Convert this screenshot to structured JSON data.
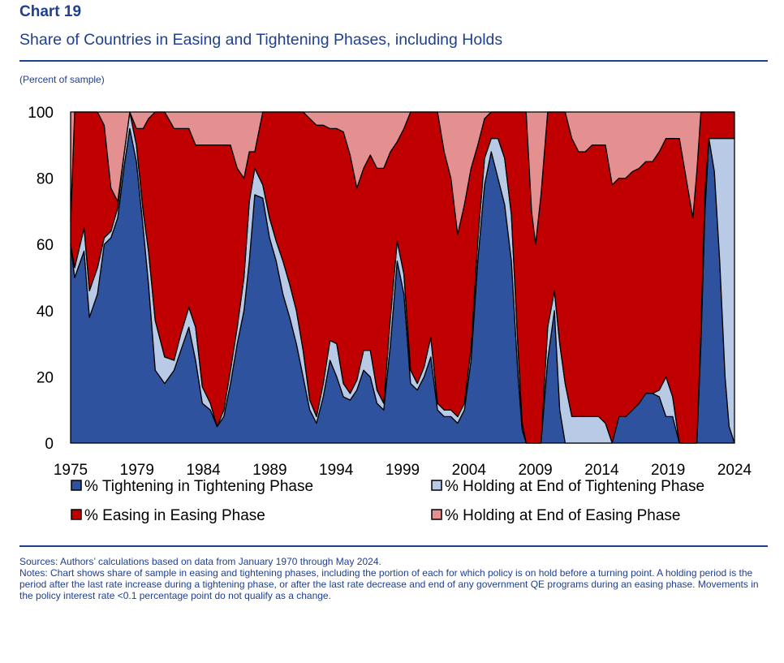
{
  "header": {
    "chart_number": "Chart 19",
    "title": "Share of Countries in Easing and Tightening Phases, including Holds",
    "unit_label": "(Percent of sample)"
  },
  "footer": {
    "sources": "Sources: Authors’ calculations based on data from January 1970 through May 2024.",
    "notes": "Notes: Chart shows share of sample in easing and tightening phases, including the portion of each for which policy is on hold before a turning point. A holding period is the period after the last rate increase during a tightening phase, or after the last rate decrease and end of any government QE programs during an easing phase. Movements in the policy interest rate <0.1 percentage point do not qualify as a change."
  },
  "colors": {
    "tightening": "#2e529e",
    "holding_tightening": "#b8cae6",
    "easing": "#c00000",
    "holding_easing": "#e59090",
    "outline": "#000000",
    "text": "#1f3f8f"
  },
  "chart_data": {
    "type": "area",
    "stacked": true,
    "x_range": [
      1975.0,
      2024.4
    ],
    "ylim": [
      0,
      100
    ],
    "yticks": [
      0,
      20,
      40,
      60,
      80,
      100
    ],
    "xticks": [
      "1975",
      "1979",
      "1984",
      "1989",
      "1994",
      "1999",
      "2004",
      "2009",
      "2014",
      "2019",
      "2024"
    ],
    "legend_placement": "bottom",
    "grid": false,
    "series": [
      {
        "name": "% Tightening in Tightening Phase",
        "color_key": "tightening"
      },
      {
        "name": "% Holding at End of Tightening Phase",
        "color_key": "holding_tightening"
      },
      {
        "name": "% Easing in Easing Phase",
        "color_key": "easing"
      },
      {
        "name": "% Holding at End of Easing Phase",
        "color_key": "holding_easing"
      }
    ],
    "points": [
      [
        1975.0,
        60,
        0,
        7,
        33
      ],
      [
        1975.3,
        50,
        3,
        47,
        0
      ],
      [
        1976.0,
        58,
        7,
        35,
        0
      ],
      [
        1976.4,
        38,
        8,
        54,
        0
      ],
      [
        1977.0,
        45,
        8,
        47,
        0
      ],
      [
        1977.5,
        60,
        2,
        34,
        4
      ],
      [
        1978.0,
        62,
        2,
        13,
        23
      ],
      [
        1978.5,
        68,
        3,
        2,
        27
      ],
      [
        1979.0,
        84,
        4,
        0,
        12
      ],
      [
        1979.4,
        95,
        5,
        0,
        0
      ],
      [
        1979.9,
        85,
        5,
        5,
        5
      ],
      [
        1980.4,
        65,
        5,
        25,
        5
      ],
      [
        1980.8,
        48,
        10,
        40,
        2
      ],
      [
        1981.3,
        22,
        15,
        63,
        0
      ],
      [
        1982.0,
        18,
        8,
        74,
        0
      ],
      [
        1982.7,
        22,
        3,
        70,
        5
      ],
      [
        1983.2,
        28,
        5,
        62,
        5
      ],
      [
        1983.8,
        35,
        6,
        54,
        5
      ],
      [
        1984.3,
        25,
        10,
        55,
        10
      ],
      [
        1984.8,
        12,
        5,
        73,
        10
      ],
      [
        1985.4,
        10,
        2,
        78,
        10
      ],
      [
        1985.9,
        5,
        0,
        85,
        10
      ],
      [
        1986.4,
        8,
        2,
        80,
        10
      ],
      [
        1986.9,
        18,
        4,
        68,
        10
      ],
      [
        1987.4,
        30,
        5,
        48,
        17
      ],
      [
        1987.9,
        40,
        10,
        30,
        20
      ],
      [
        1988.3,
        55,
        18,
        15,
        12
      ],
      [
        1988.7,
        75,
        8,
        5,
        12
      ],
      [
        1989.3,
        74,
        4,
        22,
        0
      ],
      [
        1989.8,
        62,
        6,
        32,
        0
      ],
      [
        1990.3,
        55,
        6,
        39,
        0
      ],
      [
        1990.8,
        45,
        10,
        45,
        0
      ],
      [
        1991.3,
        38,
        10,
        52,
        0
      ],
      [
        1991.8,
        30,
        10,
        60,
        0
      ],
      [
        1992.3,
        20,
        8,
        72,
        0
      ],
      [
        1992.8,
        10,
        3,
        85,
        2
      ],
      [
        1993.3,
        6,
        2,
        88,
        4
      ],
      [
        1993.8,
        14,
        4,
        78,
        4
      ],
      [
        1994.3,
        25,
        6,
        64,
        5
      ],
      [
        1994.8,
        20,
        10,
        65,
        5
      ],
      [
        1995.3,
        14,
        4,
        76,
        6
      ],
      [
        1995.8,
        13,
        2,
        72,
        13
      ],
      [
        1996.3,
        16,
        3,
        58,
        23
      ],
      [
        1996.8,
        22,
        6,
        55,
        17
      ],
      [
        1997.3,
        20,
        8,
        59,
        13
      ],
      [
        1997.8,
        12,
        4,
        67,
        17
      ],
      [
        1998.3,
        10,
        2,
        71,
        17
      ],
      [
        1998.8,
        30,
        8,
        50,
        12
      ],
      [
        1999.3,
        55,
        6,
        30,
        9
      ],
      [
        1999.8,
        45,
        6,
        44,
        5
      ],
      [
        2000.3,
        18,
        4,
        78,
        0
      ],
      [
        2000.8,
        16,
        2,
        82,
        0
      ],
      [
        2001.3,
        20,
        3,
        77,
        0
      ],
      [
        2001.8,
        26,
        6,
        68,
        0
      ],
      [
        2002.3,
        10,
        2,
        88,
        0
      ],
      [
        2002.8,
        8,
        2,
        78,
        12
      ],
      [
        2003.3,
        8,
        2,
        70,
        20
      ],
      [
        2003.8,
        6,
        2,
        55,
        37
      ],
      [
        2004.3,
        10,
        2,
        60,
        28
      ],
      [
        2004.8,
        25,
        4,
        54,
        17
      ],
      [
        2005.3,
        55,
        6,
        29,
        10
      ],
      [
        2005.8,
        78,
        8,
        12,
        2
      ],
      [
        2006.3,
        88,
        4,
        8,
        0
      ],
      [
        2006.8,
        80,
        12,
        8,
        0
      ],
      [
        2007.3,
        72,
        14,
        14,
        0
      ],
      [
        2007.8,
        55,
        14,
        31,
        0
      ],
      [
        2008.3,
        20,
        8,
        72,
        0
      ],
      [
        2008.6,
        4,
        2,
        94,
        0
      ],
      [
        2008.9,
        0,
        0,
        100,
        0
      ],
      [
        2009.3,
        0,
        0,
        70,
        30
      ],
      [
        2009.6,
        0,
        0,
        60,
        40
      ],
      [
        2010.0,
        0,
        0,
        75,
        25
      ],
      [
        2010.5,
        25,
        10,
        65,
        0
      ],
      [
        2011.0,
        40,
        6,
        54,
        0
      ],
      [
        2011.4,
        10,
        20,
        70,
        0
      ],
      [
        2011.8,
        0,
        18,
        82,
        0
      ],
      [
        2012.3,
        0,
        8,
        84,
        8
      ],
      [
        2012.8,
        0,
        8,
        80,
        12
      ],
      [
        2013.3,
        0,
        8,
        80,
        12
      ],
      [
        2013.8,
        0,
        8,
        82,
        10
      ],
      [
        2014.3,
        0,
        8,
        82,
        10
      ],
      [
        2014.8,
        0,
        6,
        84,
        10
      ],
      [
        2015.3,
        0,
        0,
        78,
        22
      ],
      [
        2015.8,
        8,
        0,
        72,
        20
      ],
      [
        2016.3,
        8,
        0,
        72,
        20
      ],
      [
        2016.8,
        10,
        0,
        72,
        18
      ],
      [
        2017.3,
        12,
        0,
        71,
        17
      ],
      [
        2017.8,
        15,
        0,
        70,
        15
      ],
      [
        2018.3,
        15,
        0,
        70,
        15
      ],
      [
        2018.8,
        14,
        2,
        72,
        12
      ],
      [
        2019.3,
        8,
        12,
        72,
        8
      ],
      [
        2019.8,
        8,
        6,
        78,
        8
      ],
      [
        2020.3,
        0,
        0,
        92,
        8
      ],
      [
        2020.8,
        0,
        0,
        80,
        20
      ],
      [
        2021.3,
        0,
        0,
        68,
        32
      ],
      [
        2021.6,
        0,
        0,
        82,
        18
      ],
      [
        2021.9,
        30,
        4,
        66,
        0
      ],
      [
        2022.2,
        70,
        6,
        24,
        0
      ],
      [
        2022.5,
        92,
        0,
        8,
        0
      ],
      [
        2022.9,
        82,
        10,
        8,
        0
      ],
      [
        2023.3,
        55,
        37,
        8,
        0
      ],
      [
        2023.7,
        20,
        72,
        8,
        0
      ],
      [
        2024.0,
        5,
        87,
        8,
        0
      ],
      [
        2024.4,
        0,
        92,
        8,
        0
      ]
    ]
  }
}
